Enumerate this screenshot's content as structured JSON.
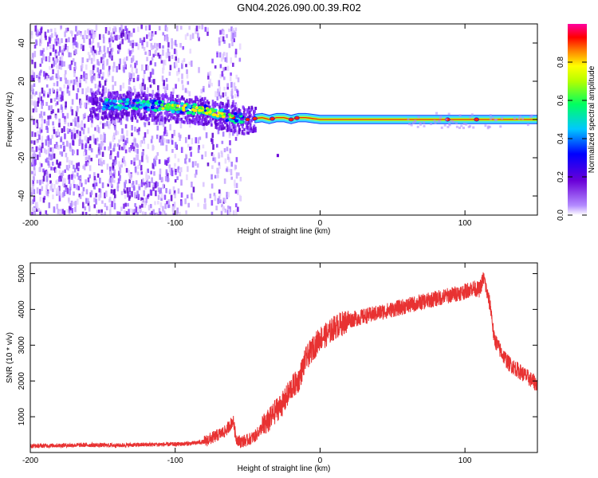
{
  "title": "GN04.2026.090.00.39.R02",
  "chart_data": [
    {
      "type": "heatmap",
      "title": "GN04.2026.090.00.39.R02",
      "xlabel": "Height of straight line (km)",
      "ylabel": "Frequency (Hz)",
      "xlim": [
        -200,
        150
      ],
      "ylim": [
        -50,
        50
      ],
      "xticks": [
        -200,
        -100,
        0,
        100
      ],
      "yticks": [
        -40,
        -20,
        0,
        20,
        40
      ],
      "ridge": {
        "description_points_x": [
          -150,
          -130,
          -110,
          -95,
          -80,
          -70,
          -60,
          -50,
          -40,
          -35,
          -30,
          -25,
          -20,
          -15,
          -10,
          0,
          50,
          100,
          150
        ],
        "description_points_y": [
          8,
          8,
          7,
          6,
          5,
          3,
          1,
          0,
          1,
          0,
          1,
          1,
          0,
          1,
          1,
          0,
          0,
          0,
          0
        ]
      },
      "colorbar": {
        "label": "Normalized spectral amplitude",
        "range": [
          0,
          1
        ],
        "ticks": [
          "0.0",
          "0.2",
          "0.4",
          "0.6",
          "0.8"
        ]
      }
    },
    {
      "type": "line",
      "xlabel": "Height of straight line (km)",
      "ylabel": "SNR (10 * v/v)",
      "xlim": [
        -200,
        150
      ],
      "ylim": [
        0,
        5300
      ],
      "xticks": [
        -200,
        -100,
        0,
        100
      ],
      "yticks": [
        1000,
        2000,
        3000,
        4000,
        5000
      ],
      "color": "#e83232",
      "series": [
        {
          "name": "SNR",
          "x": [
            -200,
            -180,
            -160,
            -140,
            -120,
            -100,
            -90,
            -80,
            -70,
            -65,
            -60,
            -58,
            -55,
            -50,
            -45,
            -40,
            -35,
            -30,
            -25,
            -20,
            -15,
            -10,
            -5,
            0,
            5,
            10,
            20,
            30,
            40,
            50,
            60,
            70,
            80,
            90,
            100,
            105,
            110,
            113,
            115,
            118,
            120,
            125,
            130,
            140,
            150
          ],
          "values": [
            180,
            200,
            210,
            200,
            220,
            230,
            250,
            300,
            500,
            600,
            900,
            400,
            300,
            350,
            450,
            700,
            900,
            1200,
            1400,
            1800,
            2000,
            2600,
            2900,
            3200,
            3300,
            3500,
            3700,
            3800,
            3900,
            4000,
            4100,
            4200,
            4300,
            4400,
            4500,
            4600,
            4550,
            4900,
            4500,
            4000,
            3200,
            2800,
            2500,
            2200,
            1900
          ]
        }
      ]
    }
  ]
}
